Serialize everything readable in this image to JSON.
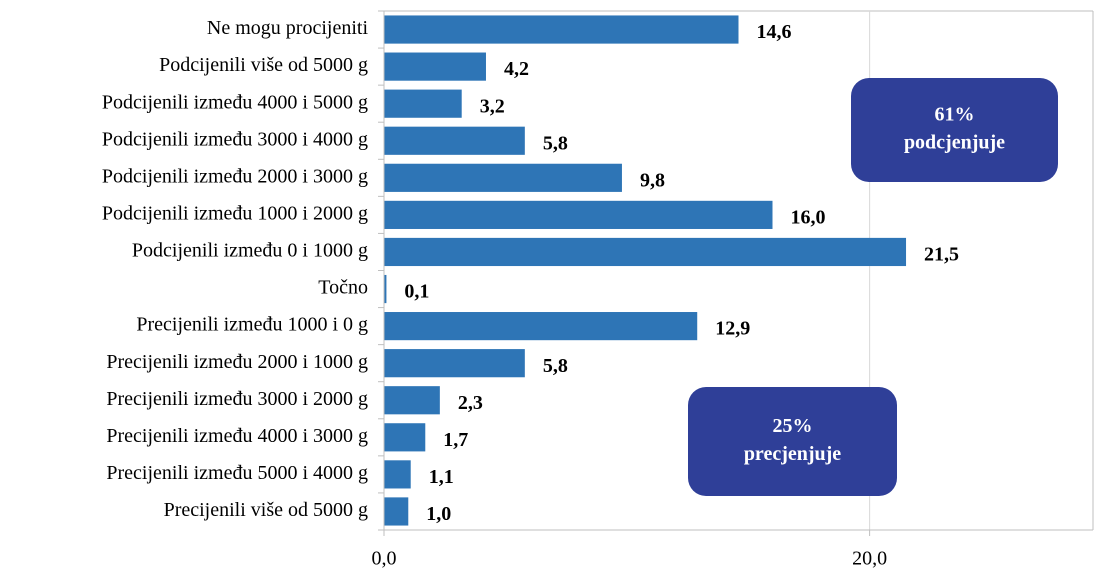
{
  "chart_data": {
    "type": "hbar",
    "categories": [
      "Ne mogu procijeniti",
      "Podcijenili  više od 5000 g",
      "Podcijenili između 4000 i 5000 g",
      "Podcijenili između 3000 i 4000 g",
      "Podcijenili između 2000 i 3000 g",
      "Podcijenili između 1000 i 2000 g",
      "Podcijenili između 0 i 1000 g",
      "Točno",
      "Precijenili  između 1000 i 0 g",
      "Precijenili  između 2000 i 1000 g",
      "Precijenili između 3000 i 2000 g",
      "Precijenili  između 4000 i 3000 g",
      "Precijenili između 5000 i 4000 g",
      "Precijenili  više od 5000 g"
    ],
    "values": [
      14.6,
      4.2,
      3.2,
      5.8,
      9.8,
      16.0,
      21.5,
      0.1,
      12.9,
      5.8,
      2.3,
      1.7,
      1.1,
      1.0
    ],
    "value_labels": [
      "14,6",
      "4,2",
      "3,2",
      "5,8",
      "9,8",
      "16,0",
      "21,5",
      "0,1",
      "12,9",
      "5,8",
      "2,3",
      "1,7",
      "1,1",
      "1,0"
    ],
    "color": "#2e75b6",
    "xlim": [
      0,
      29.2
    ],
    "xticks": [
      {
        "value": 0,
        "label": "0,0"
      },
      {
        "value": 20,
        "label": "20,0"
      }
    ],
    "grid": true,
    "annotations": [
      {
        "text": [
          "61%",
          "podcjenjuje"
        ],
        "color": "#2f3f98"
      },
      {
        "text": [
          "25%",
          "precjenjuje"
        ],
        "color": "#2f3f98"
      }
    ]
  }
}
